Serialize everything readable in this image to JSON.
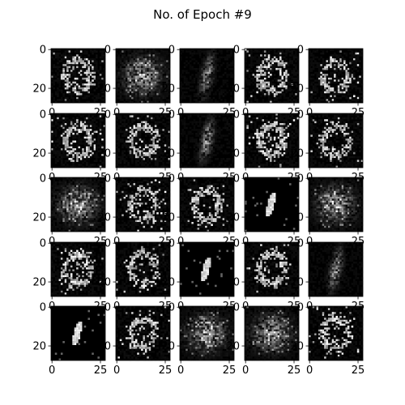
{
  "chart_data": {
    "type": "heatmap",
    "title": "No. of Epoch #9",
    "rows": 5,
    "cols": 5,
    "image_shape": [
      28,
      28
    ],
    "xlim": [
      0,
      27
    ],
    "ylim": [
      27,
      0
    ],
    "y_tick_labels": [
      "0",
      "20"
    ],
    "x_tick_labels": [
      "0",
      "25"
    ],
    "colormap": "gray",
    "panels": [
      [
        "ring",
        "blob",
        "stroke-faint",
        "ring",
        "ring"
      ],
      [
        "ring",
        "ring",
        "stroke-faint",
        "ring",
        "ring"
      ],
      [
        "blob",
        "ring",
        "ring",
        "stroke-bright",
        "blob"
      ],
      [
        "ring",
        "ring",
        "stroke-bright",
        "ring",
        "stroke-faint"
      ],
      [
        "stroke-bright",
        "ring",
        "blob",
        "blob",
        "ring"
      ]
    ]
  }
}
